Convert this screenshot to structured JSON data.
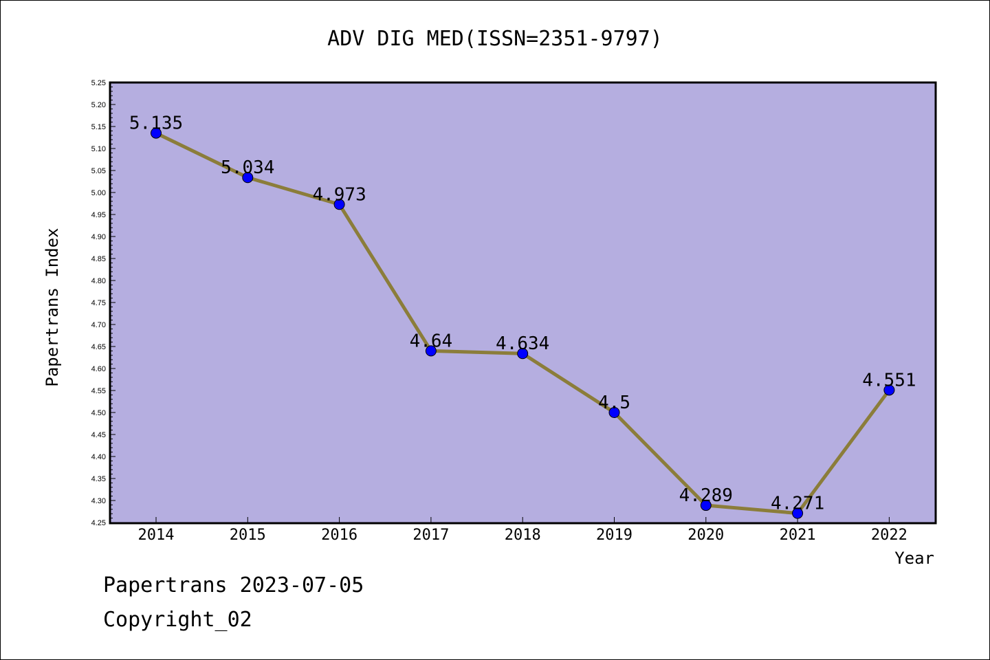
{
  "footer": {
    "line1": "Papertrans 2023-07-05",
    "line2": "Copyright_02"
  },
  "colors": {
    "plot_background": "#b5aee0",
    "line": "#8b7d3a",
    "marker": "#0000ff"
  },
  "chart_data": {
    "type": "line",
    "title": "ADV DIG MED(ISSN=2351-9797)",
    "xlabel": "Year",
    "ylabel": "Papertrans Index",
    "categories": [
      "2014",
      "2015",
      "2016",
      "2017",
      "2018",
      "2019",
      "2020",
      "2021",
      "2022"
    ],
    "values": [
      5.135,
      5.034,
      4.973,
      4.64,
      4.634,
      4.5,
      4.289,
      4.271,
      4.551
    ],
    "data_labels": [
      "5.135",
      "5.034",
      "4.973",
      "4.64",
      "4.634",
      "4.5",
      "4.289",
      "4.271",
      "4.551"
    ],
    "ylim": [
      4.25,
      5.25
    ],
    "yticks": [
      "4.25",
      "4.30",
      "4.35",
      "4.40",
      "4.45",
      "4.50",
      "4.55",
      "4.60",
      "4.65",
      "4.70",
      "4.75",
      "4.80",
      "4.85",
      "4.90",
      "4.95",
      "5.00",
      "5.05",
      "5.10",
      "5.15",
      "5.20",
      "5.25"
    ],
    "grid": false,
    "legend": "none"
  }
}
